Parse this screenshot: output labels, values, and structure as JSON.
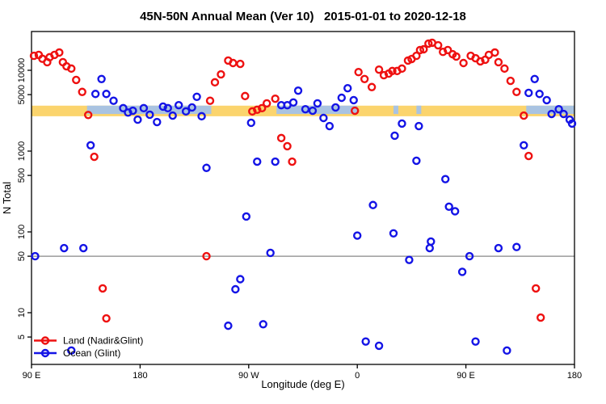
{
  "title": "45N-50N Annual Mean (Ver 10)   2015-01-01 to 2020-12-18",
  "chart_data": {
    "type": "scatter",
    "title": "45N-50N Annual Mean (Ver 10)   2015-01-01 to 2020-12-18",
    "xlabel": "Longitude (deg E)",
    "ylabel": "N Total",
    "x_axis": {
      "note": "longitude axis wraps eastward: 90E -> 180 -> 90W -> 0 -> 90E -> 180",
      "tick_positions_deg": [
        90,
        180,
        270,
        360,
        450,
        540
      ],
      "tick_labels": [
        "90 E",
        "180",
        "90 W",
        "0",
        "90 E",
        "180"
      ],
      "range_deg": [
        90,
        540
      ]
    },
    "y_axis": {
      "scale": "log10",
      "tick_values": [
        5,
        10,
        50,
        100,
        500,
        1000,
        5000,
        10000
      ],
      "tick_labels": [
        "5",
        "10",
        "50",
        "100",
        "500",
        "1000",
        "5000",
        "10000"
      ],
      "range": [
        3,
        28000
      ]
    },
    "reference_line": {
      "value": 50,
      "color": "#878787"
    },
    "bands": {
      "orange": {
        "color": "#fbd46d",
        "value_range": [
          2700,
          3650
        ],
        "deg_segments": [
          [
            90,
            540
          ]
        ]
      },
      "lightblue": {
        "color": "#a9c3e1",
        "value_range": [
          2880,
          3650
        ],
        "deg_segments": [
          [
            136,
            239
          ],
          [
            293,
            360
          ],
          [
            390,
            394
          ],
          [
            409,
            413
          ],
          [
            500,
            540
          ]
        ]
      }
    },
    "series": [
      {
        "name": "Land (Nadir&Glint)",
        "color": "#ee1111",
        "points": [
          [
            92,
            15100
          ],
          [
            96,
            15500
          ],
          [
            99,
            13900
          ],
          [
            103,
            12600
          ],
          [
            105,
            14500
          ],
          [
            109,
            15500
          ],
          [
            113,
            16600
          ],
          [
            116,
            12600
          ],
          [
            119,
            11200
          ],
          [
            123,
            10500
          ],
          [
            127,
            7600
          ],
          [
            132,
            5400
          ],
          [
            137,
            2800
          ],
          [
            142,
            850
          ],
          [
            149,
            20
          ],
          [
            152,
            8.5
          ],
          [
            235,
            50
          ],
          [
            238,
            4200
          ],
          [
            242,
            7100
          ],
          [
            247,
            8900
          ],
          [
            253,
            13200
          ],
          [
            257,
            12300
          ],
          [
            263,
            12000
          ],
          [
            267,
            4800
          ],
          [
            273,
            3100
          ],
          [
            277,
            3250
          ],
          [
            281,
            3400
          ],
          [
            285,
            3900
          ],
          [
            292,
            4450
          ],
          [
            297,
            1450
          ],
          [
            302,
            1150
          ],
          [
            306,
            740
          ],
          [
            358,
            3160
          ],
          [
            361,
            9500
          ],
          [
            366,
            7800
          ],
          [
            372,
            6200
          ],
          [
            378,
            10200
          ],
          [
            382,
            8700
          ],
          [
            386,
            9100
          ],
          [
            389,
            9800
          ],
          [
            393,
            9800
          ],
          [
            397,
            10500
          ],
          [
            402,
            13200
          ],
          [
            405,
            13800
          ],
          [
            409,
            15100
          ],
          [
            412,
            17800
          ],
          [
            415,
            18200
          ],
          [
            419,
            21400
          ],
          [
            422,
            21900
          ],
          [
            427,
            20400
          ],
          [
            431,
            16900
          ],
          [
            435,
            17800
          ],
          [
            439,
            15800
          ],
          [
            442,
            14800
          ],
          [
            448,
            12300
          ],
          [
            454,
            15100
          ],
          [
            458,
            14100
          ],
          [
            462,
            12900
          ],
          [
            466,
            13500
          ],
          [
            469,
            15500
          ],
          [
            474,
            16600
          ],
          [
            477,
            12600
          ],
          [
            482,
            10500
          ],
          [
            487,
            7400
          ],
          [
            492,
            5400
          ],
          [
            498,
            2750
          ],
          [
            502,
            870
          ],
          [
            508,
            20
          ],
          [
            512,
            8.7
          ]
        ]
      },
      {
        "name": "Ocean (Glint)",
        "color": "#1414e6",
        "points": [
          [
            93,
            50
          ],
          [
            117,
            63
          ],
          [
            123,
            3.4
          ],
          [
            133,
            63
          ],
          [
            139,
            1180
          ],
          [
            143,
            5100
          ],
          [
            148,
            7800
          ],
          [
            152,
            5100
          ],
          [
            158,
            4200
          ],
          [
            166,
            3400
          ],
          [
            170,
            3000
          ],
          [
            174,
            3160
          ],
          [
            178,
            2450
          ],
          [
            183,
            3400
          ],
          [
            188,
            2820
          ],
          [
            194,
            2290
          ],
          [
            199,
            3550
          ],
          [
            203,
            3400
          ],
          [
            207,
            2750
          ],
          [
            212,
            3700
          ],
          [
            218,
            3100
          ],
          [
            223,
            3470
          ],
          [
            227,
            4700
          ],
          [
            231,
            2700
          ],
          [
            235,
            620
          ],
          [
            253,
            6.9
          ],
          [
            259,
            19.5
          ],
          [
            263,
            26
          ],
          [
            268,
            155
          ],
          [
            272,
            2240
          ],
          [
            277,
            740
          ],
          [
            282,
            7.2
          ],
          [
            288,
            55
          ],
          [
            292,
            740
          ],
          [
            297,
            3700
          ],
          [
            302,
            3700
          ],
          [
            307,
            4000
          ],
          [
            311,
            5600
          ],
          [
            317,
            3300
          ],
          [
            323,
            3160
          ],
          [
            327,
            3900
          ],
          [
            332,
            2570
          ],
          [
            337,
            2040
          ],
          [
            342,
            3470
          ],
          [
            347,
            4570
          ],
          [
            352,
            6000
          ],
          [
            357,
            4270
          ],
          [
            360,
            90
          ],
          [
            367,
            4.4
          ],
          [
            373,
            215
          ],
          [
            378,
            3.9
          ],
          [
            390,
            96
          ],
          [
            391,
            1550
          ],
          [
            397,
            2190
          ],
          [
            403,
            45
          ],
          [
            409,
            760
          ],
          [
            411,
            2040
          ],
          [
            420,
            63
          ],
          [
            421,
            76
          ],
          [
            433,
            450
          ],
          [
            436,
            205
          ],
          [
            441,
            180
          ],
          [
            447,
            32
          ],
          [
            453,
            50
          ],
          [
            458,
            4.4
          ],
          [
            477,
            63
          ],
          [
            484,
            3.4
          ],
          [
            492,
            65
          ],
          [
            498,
            1180
          ],
          [
            502,
            5250
          ],
          [
            507,
            7800
          ],
          [
            511,
            5100
          ],
          [
            517,
            4270
          ],
          [
            521,
            2880
          ],
          [
            527,
            3300
          ],
          [
            531,
            2880
          ],
          [
            536,
            2450
          ],
          [
            538,
            2190
          ]
        ]
      }
    ],
    "legend_position": "bottom-left",
    "grid": false
  },
  "legend": {
    "items": [
      {
        "label": "Land (Nadir&Glint)",
        "color": "#ee1111"
      },
      {
        "label": "Ocean (Glint)",
        "color": "#1414e6"
      }
    ]
  }
}
